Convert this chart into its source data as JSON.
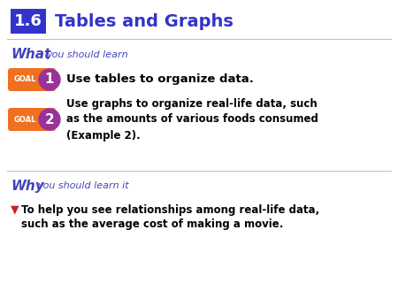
{
  "bg_color": "#ffffff",
  "section_num": "1.6",
  "section_num_bg": "#3333cc",
  "section_num_color": "#ffffff",
  "title": "Tables and Graphs",
  "title_color": "#3333cc",
  "what_label": "What",
  "what_suffix": "you should learn",
  "what_color": "#4444bb",
  "goal_bg": "#f07020",
  "goal_text_color": "#ffffff",
  "goal_circle_color": "#993399",
  "goal1_num": "1",
  "goal1_text": "Use tables to organize data.",
  "goal2_num": "2",
  "goal2_text": "Use graphs to organize real-life data, such\nas the amounts of various foods consumed\n(Example 2).",
  "why_label": "Why",
  "why_suffix": "you should learn it",
  "why_color": "#4444bb",
  "why_line1": "To help you see relationships among real-life data,",
  "why_line2": "such as the average cost of making a movie.",
  "why_triangle_color": "#cc2222",
  "text_color": "#000000"
}
